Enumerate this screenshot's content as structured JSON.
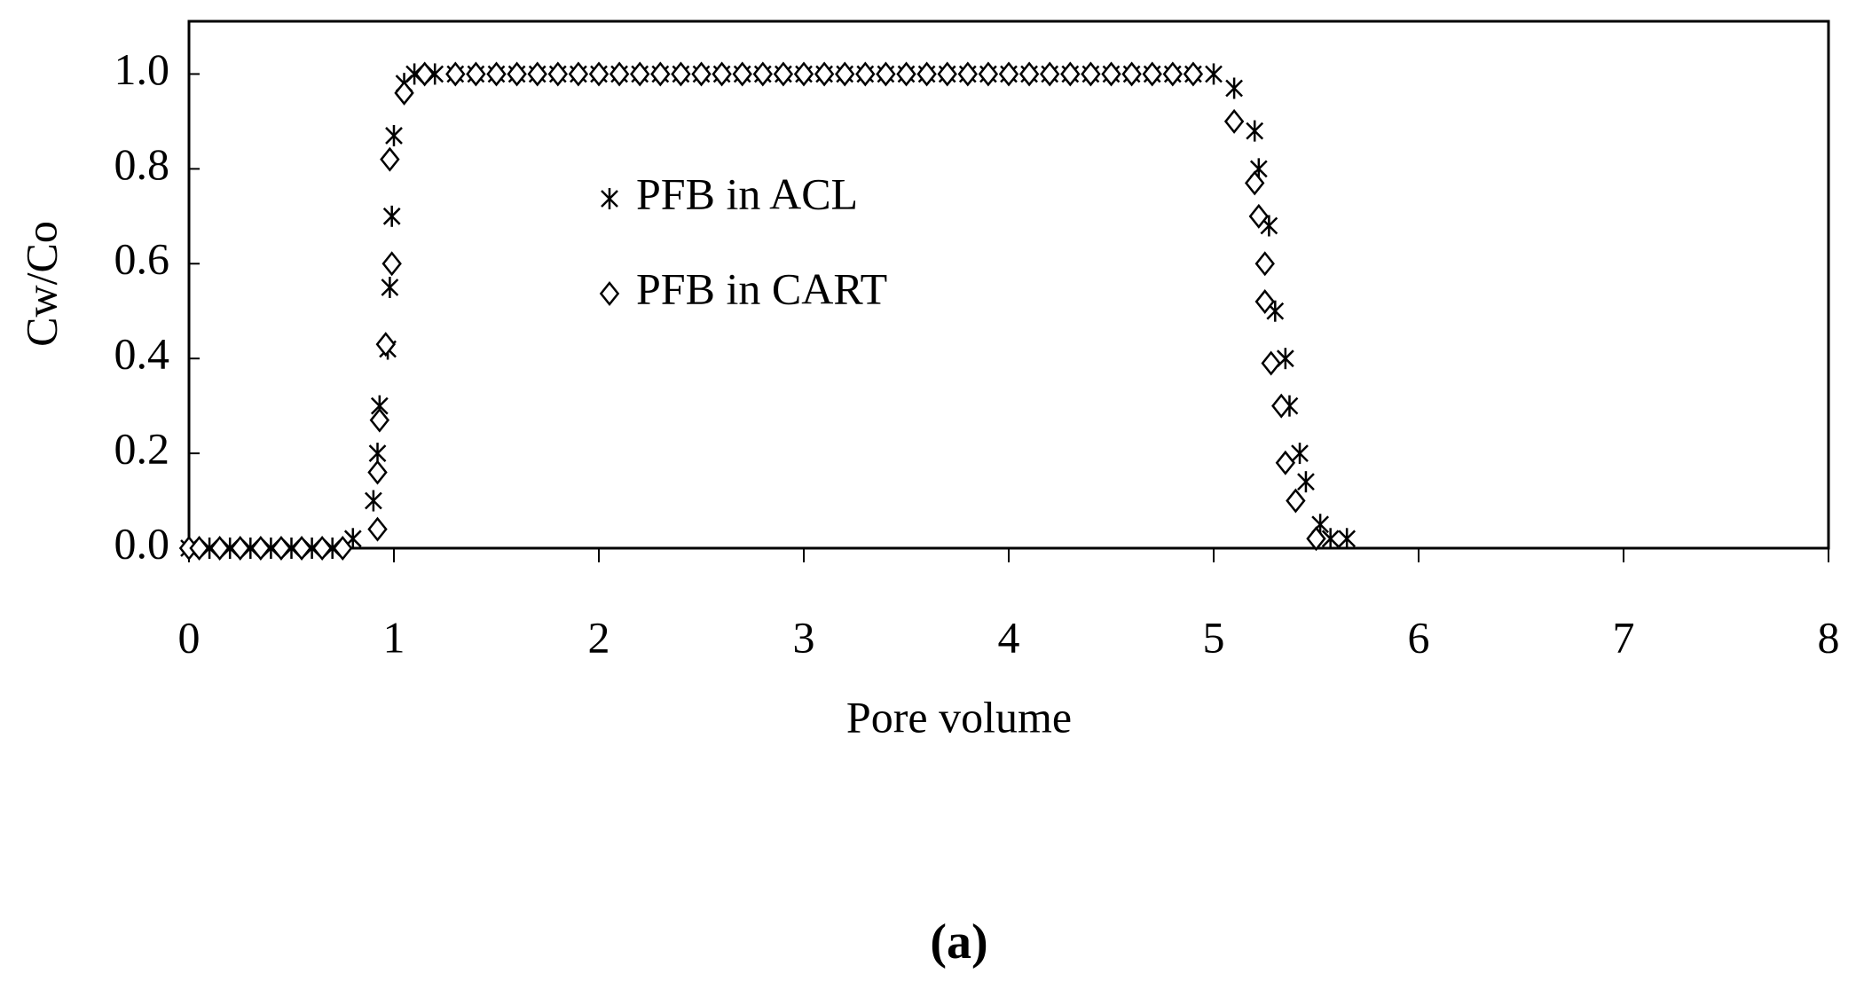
{
  "chart_data": {
    "type": "scatter",
    "x_label": "Pore volume",
    "y_label": "Cw/Co",
    "caption": "(a)",
    "xlim": [
      0,
      8
    ],
    "xticks": [
      0,
      1,
      2,
      3,
      4,
      5,
      6,
      7,
      8
    ],
    "ylim": [
      0,
      1.1
    ],
    "yticks": [
      {
        "value": 0,
        "label": "0.0"
      },
      0.2,
      0.4,
      0.6,
      0.8,
      {
        "value": 1,
        "label": "1.0"
      }
    ],
    "legend": "upper center",
    "series": [
      {
        "name": "PFB in ACL",
        "color": "#000000",
        "marker": "asterisk",
        "x": [
          0,
          0.1,
          0.2,
          0.3,
          0.4,
          0.5,
          0.6,
          0.7,
          0.8,
          0.9,
          0.92,
          0.93,
          0.97,
          0.98,
          0.99,
          1.0,
          1.05,
          1.1,
          1.2,
          1.3,
          1.4,
          1.5,
          1.6,
          1.7,
          1.8,
          1.9,
          2.0,
          2.1,
          2.2,
          2.3,
          2.4,
          2.5,
          2.6,
          2.7,
          2.8,
          2.9,
          3.0,
          3.1,
          3.2,
          3.3,
          3.4,
          3.5,
          3.6,
          3.7,
          3.8,
          3.9,
          4.0,
          4.1,
          4.2,
          4.3,
          4.4,
          4.5,
          4.6,
          4.7,
          4.8,
          4.9,
          5.0,
          5.1,
          5.2,
          5.22,
          5.27,
          5.3,
          5.35,
          5.37,
          5.42,
          5.45,
          5.52,
          5.57,
          5.65
        ],
        "values": [
          0,
          0,
          0,
          0,
          0,
          0,
          0,
          0,
          0.02,
          0.1,
          0.2,
          0.3,
          0.42,
          0.55,
          0.7,
          0.87,
          0.98,
          1,
          1,
          1,
          1,
          1,
          1,
          1,
          1,
          1,
          1,
          1,
          1,
          1,
          1,
          1,
          1,
          1,
          1,
          1,
          1,
          1,
          1,
          1,
          1,
          1,
          1,
          1,
          1,
          1,
          1,
          1,
          1,
          1,
          1,
          1,
          1,
          1,
          1,
          1,
          1,
          0.97,
          0.88,
          0.8,
          0.68,
          0.5,
          0.4,
          0.3,
          0.2,
          0.14,
          0.05,
          0.02,
          0.02
        ]
      },
      {
        "name": "PFB in CART",
        "color": "#000000",
        "marker": "diamond",
        "x": [
          0,
          0.05,
          0.15,
          0.25,
          0.35,
          0.45,
          0.55,
          0.65,
          0.75,
          0.92,
          0.92,
          0.93,
          0.96,
          0.99,
          0.98,
          1.05,
          1.15,
          1.3,
          1.4,
          1.5,
          1.6,
          1.7,
          1.8,
          1.9,
          2.0,
          2.1,
          2.2,
          2.3,
          2.4,
          2.5,
          2.6,
          2.7,
          2.8,
          2.9,
          3.0,
          3.1,
          3.2,
          3.3,
          3.4,
          3.5,
          3.6,
          3.7,
          3.8,
          3.9,
          4.0,
          4.1,
          4.2,
          4.3,
          4.4,
          4.5,
          4.6,
          4.7,
          4.8,
          4.9,
          5.1,
          5.2,
          5.22,
          5.25,
          5.25,
          5.28,
          5.33,
          5.35,
          5.4,
          5.5
        ],
        "values": [
          0,
          0,
          0,
          0,
          0,
          0,
          0,
          0,
          0,
          0.04,
          0.16,
          0.27,
          0.43,
          0.6,
          0.82,
          0.96,
          1,
          1,
          1,
          1,
          1,
          1,
          1,
          1,
          1,
          1,
          1,
          1,
          1,
          1,
          1,
          1,
          1,
          1,
          1,
          1,
          1,
          1,
          1,
          1,
          1,
          1,
          1,
          1,
          1,
          1,
          1,
          1,
          1,
          1,
          1,
          1,
          1,
          1,
          0.9,
          0.77,
          0.7,
          0.6,
          0.52,
          0.39,
          0.3,
          0.18,
          0.1,
          0.02
        ]
      }
    ]
  }
}
